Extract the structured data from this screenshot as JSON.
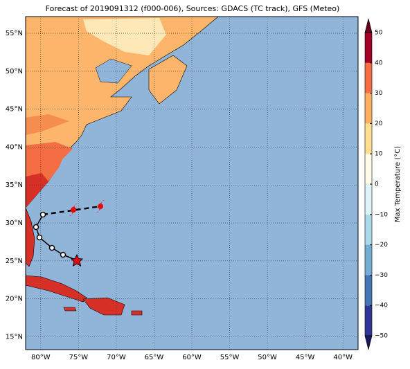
{
  "title": "Forecast of 2019091312 (f000-006), Sources: GDACS (TC track), GFS (Meteo)",
  "map": {
    "lon_range": [
      -82,
      -38
    ],
    "lat_range": [
      13.3,
      57.2
    ],
    "lon_ticks": [
      {
        "value": -80,
        "label": "80°W"
      },
      {
        "value": -75,
        "label": "75°W"
      },
      {
        "value": -70,
        "label": "70°W"
      },
      {
        "value": -65,
        "label": "65°W"
      },
      {
        "value": -60,
        "label": "60°W"
      },
      {
        "value": -55,
        "label": "55°W"
      },
      {
        "value": -50,
        "label": "50°W"
      },
      {
        "value": -45,
        "label": "45°W"
      },
      {
        "value": -40,
        "label": "40°W"
      }
    ],
    "lat_ticks": [
      {
        "value": 15,
        "label": "15°N"
      },
      {
        "value": 20,
        "label": "20°N"
      },
      {
        "value": 25,
        "label": "25°N"
      },
      {
        "value": 30,
        "label": "30°N"
      },
      {
        "value": 35,
        "label": "35°N"
      },
      {
        "value": 40,
        "label": "40°N"
      },
      {
        "value": 45,
        "label": "45°N"
      },
      {
        "value": 50,
        "label": "50°N"
      },
      {
        "value": 55,
        "label": "55°N"
      }
    ]
  },
  "colorbar": {
    "label": "Max Temperature (°C)",
    "range": [
      -50,
      50
    ],
    "ticks": [
      50,
      40,
      30,
      20,
      10,
      0,
      {
        "value": -10,
        "label": "−10"
      },
      {
        "value": -20,
        "label": "−20"
      },
      {
        "value": -30,
        "label": "−30"
      },
      {
        "value": -40,
        "label": "−40"
      },
      {
        "value": -50,
        "label": "−50"
      }
    ],
    "levels": [
      -50,
      -40,
      -30,
      -20,
      -10,
      0,
      10,
      20,
      30,
      40,
      50
    ],
    "colors": [
      "#313695",
      "#4575b4",
      "#74add1",
      "#abd9e9",
      "#e0f3f8",
      "#fffbe8",
      "#fee090",
      "#fdae61",
      "#f46d43",
      "#a50026"
    ]
  }
}
